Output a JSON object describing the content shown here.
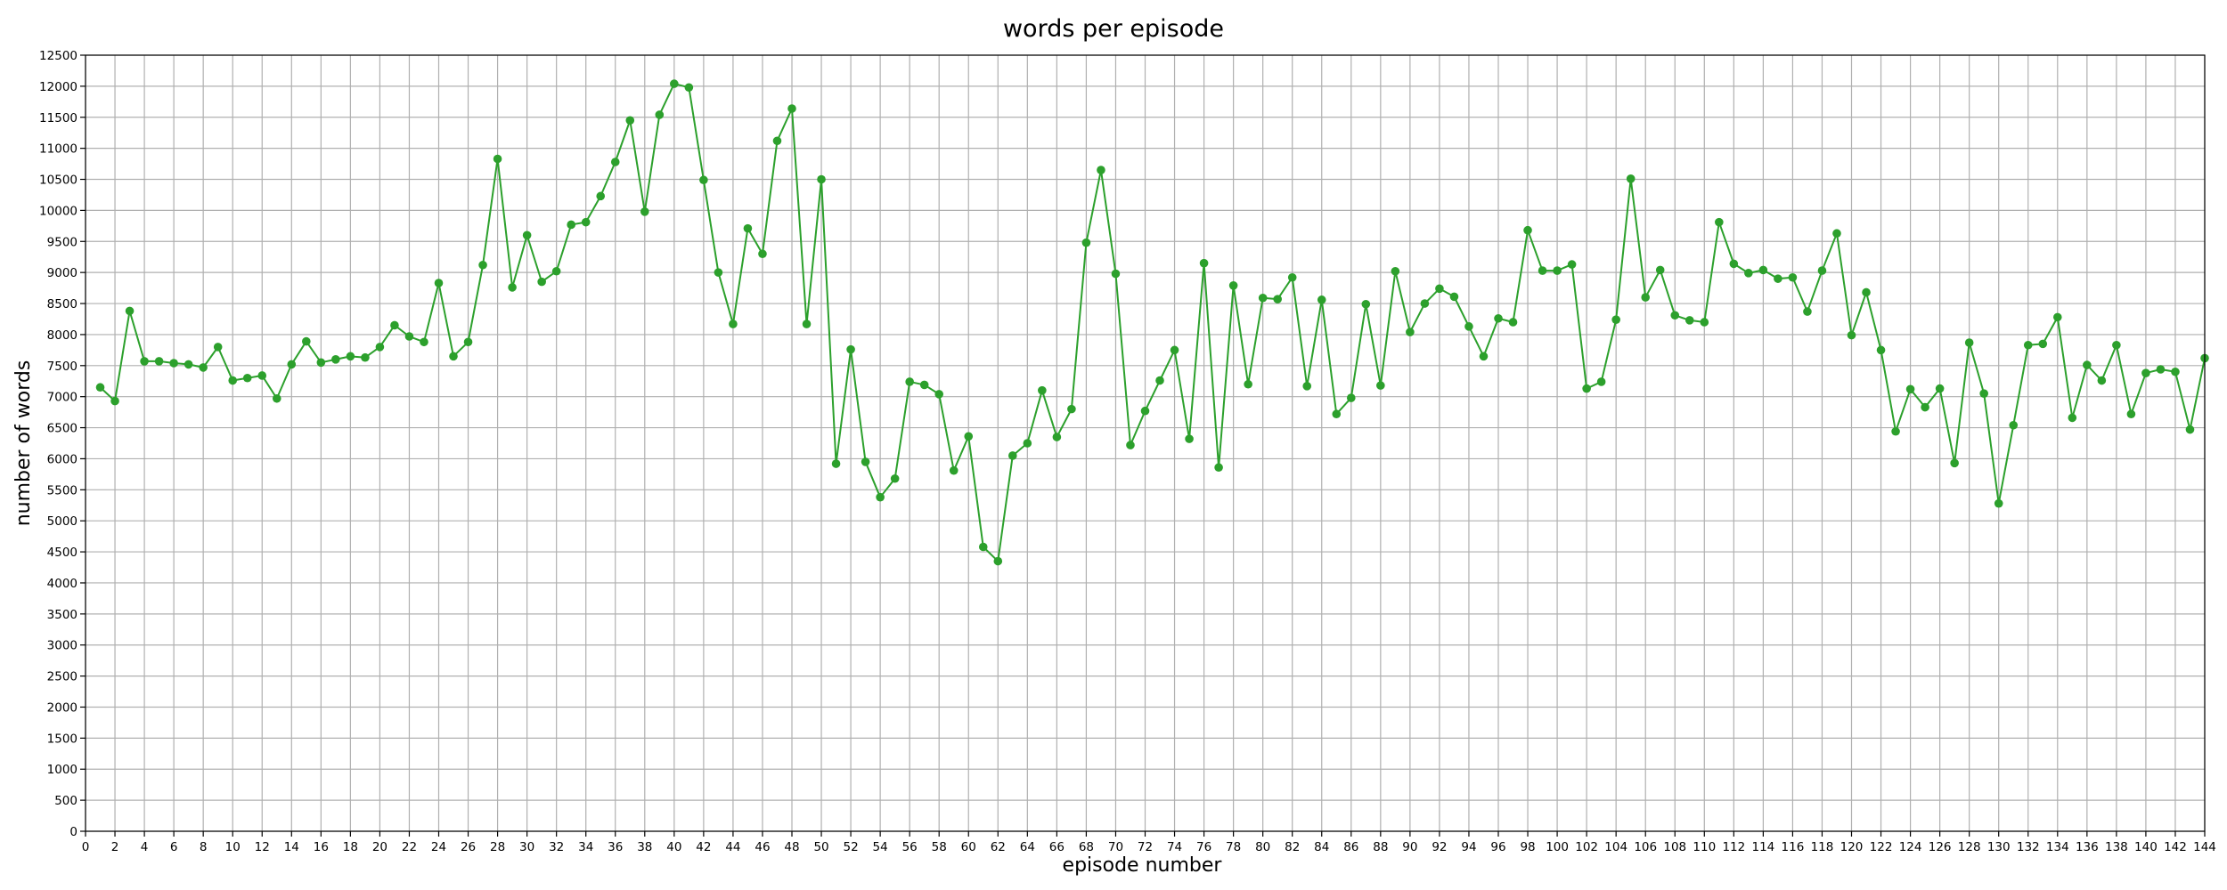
{
  "chart_data": {
    "type": "line",
    "title": "words per episode",
    "xlabel": "episode number",
    "ylabel": "number of words",
    "xlim": [
      0,
      144
    ],
    "ylim": [
      0,
      12500
    ],
    "x_ticks": [
      0,
      2,
      4,
      6,
      8,
      10,
      12,
      14,
      16,
      18,
      20,
      22,
      24,
      26,
      28,
      30,
      32,
      34,
      36,
      38,
      40,
      42,
      44,
      46,
      48,
      50,
      52,
      54,
      56,
      58,
      60,
      62,
      64,
      66,
      68,
      70,
      72,
      74,
      76,
      78,
      80,
      82,
      84,
      86,
      88,
      90,
      92,
      94,
      96,
      98,
      100,
      102,
      104,
      106,
      108,
      110,
      112,
      114,
      116,
      118,
      120,
      122,
      124,
      126,
      128,
      130,
      132,
      134,
      136,
      138,
      140,
      142,
      144
    ],
    "y_ticks": [
      0,
      500,
      1000,
      1500,
      2000,
      2500,
      3000,
      3500,
      4000,
      4500,
      5000,
      5500,
      6000,
      6500,
      7000,
      7500,
      8000,
      8500,
      9000,
      9500,
      10000,
      10500,
      11000,
      11500,
      12000,
      12500
    ],
    "grid": true,
    "color": "#2ca02c",
    "x": [
      1,
      2,
      3,
      4,
      5,
      6,
      7,
      8,
      9,
      10,
      11,
      12,
      13,
      14,
      15,
      16,
      17,
      18,
      19,
      20,
      21,
      22,
      23,
      24,
      25,
      26,
      27,
      28,
      29,
      30,
      31,
      32,
      33,
      34,
      35,
      36,
      37,
      38,
      39,
      40,
      41,
      42,
      43,
      44,
      45,
      46,
      47,
      48,
      49,
      50,
      51,
      52,
      53,
      54,
      55,
      56,
      57,
      58,
      59,
      60,
      61,
      62,
      63,
      64,
      65,
      66,
      67,
      68,
      69,
      70,
      71,
      72,
      73,
      74,
      75,
      76,
      77,
      78,
      79,
      80,
      81,
      82,
      83,
      84,
      85,
      86,
      87,
      88,
      89,
      90,
      91,
      92,
      93,
      94,
      95,
      96,
      97,
      98,
      99,
      100,
      101,
      102,
      103,
      104,
      105,
      106,
      107,
      108,
      109,
      110,
      111,
      112,
      113,
      114,
      115,
      116,
      117,
      118,
      119,
      120,
      121,
      122,
      123,
      124,
      125,
      126,
      127,
      128,
      129,
      130,
      131,
      132,
      133,
      134,
      135,
      136,
      137,
      138,
      139,
      140,
      141,
      142,
      143,
      144
    ],
    "y": [
      7150,
      6930,
      8380,
      7570,
      7570,
      7540,
      7520,
      7470,
      7800,
      7260,
      7300,
      7340,
      6970,
      7520,
      7890,
      7550,
      7600,
      7650,
      7630,
      7800,
      8150,
      7970,
      7880,
      8830,
      7650,
      7880,
      9120,
      10830,
      8760,
      9600,
      8850,
      9020,
      9770,
      9810,
      10230,
      10780,
      11450,
      9980,
      11540,
      12040,
      11980,
      10490,
      9000,
      8170,
      9710,
      9300,
      11120,
      11640,
      8170,
      10500,
      5920,
      7760,
      5950,
      5380,
      5680,
      7240,
      7190,
      7040,
      5810,
      6360,
      4580,
      4350,
      6050,
      6250,
      7100,
      6350,
      6800,
      9480,
      10650,
      8980,
      6220,
      6770,
      7260,
      7750,
      6320,
      9150,
      5860,
      8790,
      7200,
      8590,
      8570,
      8920,
      7170,
      8560,
      6720,
      6980,
      8490,
      7180,
      9020,
      8040,
      8500,
      8740,
      8610,
      8130,
      7650,
      8260,
      8200,
      9680,
      9030,
      9030,
      9130,
      7130,
      7240,
      8240,
      10510,
      8600,
      9040,
      8310,
      8230,
      8200,
      9810,
      9140,
      8990,
      9040,
      8900,
      8920,
      8370,
      9030,
      9630,
      7990,
      8680,
      7750,
      6440,
      7120,
      6830,
      7130,
      5930,
      7870,
      7050,
      5280,
      6540,
      7830,
      7850,
      8280,
      6660,
      7510,
      7260,
      7830,
      6720,
      7380,
      7440,
      7400,
      6470,
      7620
    ]
  }
}
